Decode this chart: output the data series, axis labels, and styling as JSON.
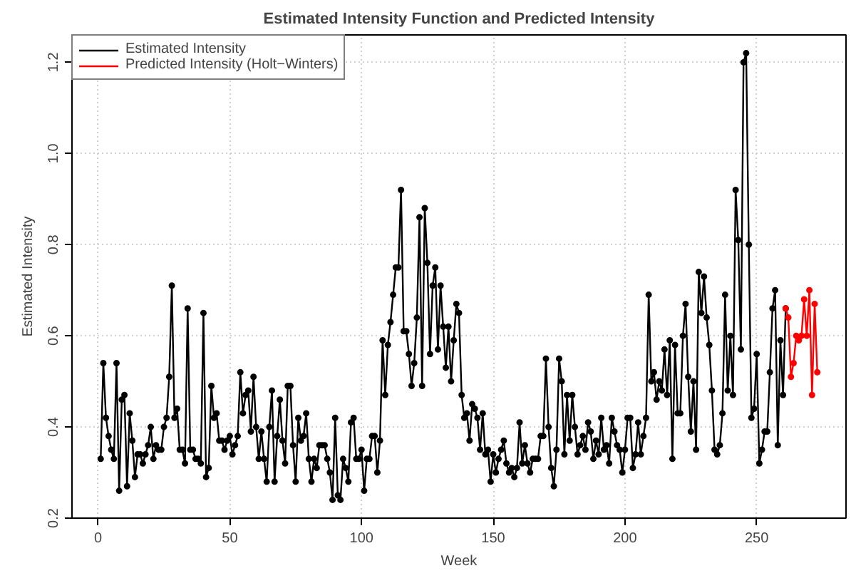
{
  "chart_data": {
    "type": "line",
    "title": "Estimated Intensity Function and Predicted Intensity",
    "xlabel": "Week",
    "ylabel": "Estimated Intensity",
    "xlim": [
      -9.9,
      283.9
    ],
    "ylim": [
      0.2,
      1.26
    ],
    "xticks": [
      0,
      50,
      100,
      150,
      200,
      250
    ],
    "yticks": [
      {
        "value": 0.2,
        "label": "0.2"
      },
      {
        "value": 0.4,
        "label": "0.4"
      },
      {
        "value": 0.6,
        "label": "0.6"
      },
      {
        "value": 0.8,
        "label": "0.8"
      },
      {
        "value": 1.0,
        "label": "1.0"
      },
      {
        "value": 1.2,
        "label": "1.2"
      }
    ],
    "grid": true,
    "legend": "top left",
    "marker": "circle",
    "line_style": "solid",
    "series": [
      {
        "name": "Estimated Intensity",
        "color": "#000000",
        "x": [
          1,
          2,
          3,
          4,
          5,
          6,
          7,
          8,
          9,
          10,
          11,
          12,
          13,
          14,
          15,
          16,
          17,
          18,
          19,
          20,
          21,
          22,
          23,
          24,
          25,
          26,
          27,
          28,
          29,
          30,
          31,
          32,
          33,
          34,
          35,
          36,
          37,
          38,
          39,
          40,
          41,
          42,
          43,
          44,
          45,
          46,
          47,
          48,
          49,
          50,
          51,
          52,
          53,
          54,
          55,
          56,
          57,
          58,
          59,
          60,
          61,
          62,
          63,
          64,
          65,
          66,
          67,
          68,
          69,
          70,
          71,
          72,
          73,
          74,
          75,
          76,
          77,
          78,
          79,
          80,
          81,
          82,
          83,
          84,
          85,
          86,
          87,
          88,
          89,
          90,
          91,
          92,
          93,
          94,
          95,
          96,
          97,
          98,
          99,
          100,
          101,
          102,
          103,
          104,
          105,
          106,
          107,
          108,
          109,
          110,
          111,
          112,
          113,
          114,
          115,
          116,
          117,
          118,
          119,
          120,
          121,
          122,
          123,
          124,
          125,
          126,
          127,
          128,
          129,
          130,
          131,
          132,
          133,
          134,
          135,
          136,
          137,
          138,
          139,
          140,
          141,
          142,
          143,
          144,
          145,
          146,
          147,
          148,
          149,
          150,
          151,
          152,
          153,
          154,
          155,
          156,
          157,
          158,
          159,
          160,
          161,
          162,
          163,
          164,
          165,
          166,
          167,
          168,
          169,
          170,
          171,
          172,
          173,
          174,
          175,
          176,
          177,
          178,
          179,
          180,
          181,
          182,
          183,
          184,
          185,
          186,
          187,
          188,
          189,
          190,
          191,
          192,
          193,
          194,
          195,
          196,
          197,
          198,
          199,
          200,
          201,
          202,
          203,
          204,
          205,
          206,
          207,
          208,
          209,
          210,
          211,
          212,
          213,
          214,
          215,
          216,
          217,
          218,
          219,
          220,
          221,
          222,
          223,
          224,
          225,
          226,
          227,
          228,
          229,
          230,
          231,
          232,
          233,
          234,
          235,
          236,
          237,
          238,
          239,
          240,
          241,
          242,
          243,
          244,
          245,
          246,
          247,
          248,
          249,
          250,
          251,
          252,
          253,
          254,
          255,
          256,
          257,
          258,
          259,
          260,
          261
        ],
        "values": [
          0.33,
          0.54,
          0.42,
          0.38,
          0.35,
          0.33,
          0.54,
          0.26,
          0.46,
          0.47,
          0.27,
          0.43,
          0.37,
          0.29,
          0.34,
          0.34,
          0.32,
          0.34,
          0.36,
          0.4,
          0.33,
          0.36,
          0.35,
          0.35,
          0.4,
          0.42,
          0.51,
          0.71,
          0.42,
          0.44,
          0.35,
          0.35,
          0.32,
          0.66,
          0.35,
          0.35,
          0.33,
          0.33,
          0.32,
          0.65,
          0.29,
          0.31,
          0.49,
          0.42,
          0.43,
          0.37,
          0.37,
          0.35,
          0.37,
          0.38,
          0.34,
          0.36,
          0.38,
          0.52,
          0.43,
          0.47,
          0.48,
          0.39,
          0.51,
          0.4,
          0.33,
          0.39,
          0.33,
          0.28,
          0.4,
          0.48,
          0.28,
          0.38,
          0.46,
          0.37,
          0.32,
          0.49,
          0.49,
          0.36,
          0.28,
          0.42,
          0.37,
          0.38,
          0.43,
          0.33,
          0.28,
          0.33,
          0.31,
          0.36,
          0.36,
          0.36,
          0.33,
          0.3,
          0.24,
          0.42,
          0.25,
          0.24,
          0.33,
          0.31,
          0.28,
          0.41,
          0.42,
          0.33,
          0.33,
          0.35,
          0.26,
          0.33,
          0.33,
          0.38,
          0.38,
          0.3,
          0.37,
          0.59,
          0.47,
          0.58,
          0.63,
          0.69,
          0.75,
          0.75,
          0.92,
          0.61,
          0.61,
          0.56,
          0.49,
          0.54,
          0.64,
          0.86,
          0.49,
          0.88,
          0.76,
          0.56,
          0.71,
          0.75,
          0.57,
          0.71,
          0.62,
          0.53,
          0.62,
          0.5,
          0.59,
          0.67,
          0.65,
          0.47,
          0.42,
          0.43,
          0.37,
          0.45,
          0.44,
          0.42,
          0.35,
          0.43,
          0.34,
          0.35,
          0.28,
          0.34,
          0.3,
          0.33,
          0.35,
          0.37,
          0.32,
          0.3,
          0.31,
          0.29,
          0.31,
          0.41,
          0.32,
          0.36,
          0.32,
          0.3,
          0.33,
          0.33,
          0.33,
          0.38,
          0.38,
          0.55,
          0.4,
          0.31,
          0.27,
          0.35,
          0.55,
          0.5,
          0.34,
          0.47,
          0.37,
          0.47,
          0.4,
          0.34,
          0.36,
          0.38,
          0.35,
          0.41,
          0.39,
          0.33,
          0.37,
          0.34,
          0.42,
          0.35,
          0.36,
          0.32,
          0.42,
          0.39,
          0.36,
          0.35,
          0.3,
          0.35,
          0.42,
          0.42,
          0.31,
          0.34,
          0.41,
          0.34,
          0.38,
          0.42,
          0.69,
          0.5,
          0.52,
          0.46,
          0.5,
          0.48,
          0.57,
          0.47,
          0.59,
          0.33,
          0.58,
          0.43,
          0.43,
          0.6,
          0.67,
          0.51,
          0.39,
          0.5,
          0.35,
          0.74,
          0.65,
          0.73,
          0.64,
          0.58,
          0.48,
          0.35,
          0.34,
          0.36,
          0.43,
          0.69,
          0.48,
          0.6,
          0.47,
          0.92,
          0.81,
          0.57,
          1.2,
          1.22,
          0.8,
          0.42,
          0.44,
          0.56,
          0.32,
          0.35,
          0.39,
          0.39,
          0.52,
          0.66,
          0.7,
          0.36,
          0.59,
          0.47,
          0.66
        ]
      },
      {
        "name": "Predicted Intensity (Holt−Winters)",
        "color": "#ff0000",
        "x": [
          261,
          262,
          263,
          264,
          265,
          266,
          267,
          268,
          269,
          270,
          271,
          272,
          273
        ],
        "values": [
          0.66,
          0.64,
          0.51,
          0.54,
          0.6,
          0.59,
          0.6,
          0.68,
          0.6,
          0.7,
          0.47,
          0.67,
          0.52
        ]
      }
    ]
  }
}
